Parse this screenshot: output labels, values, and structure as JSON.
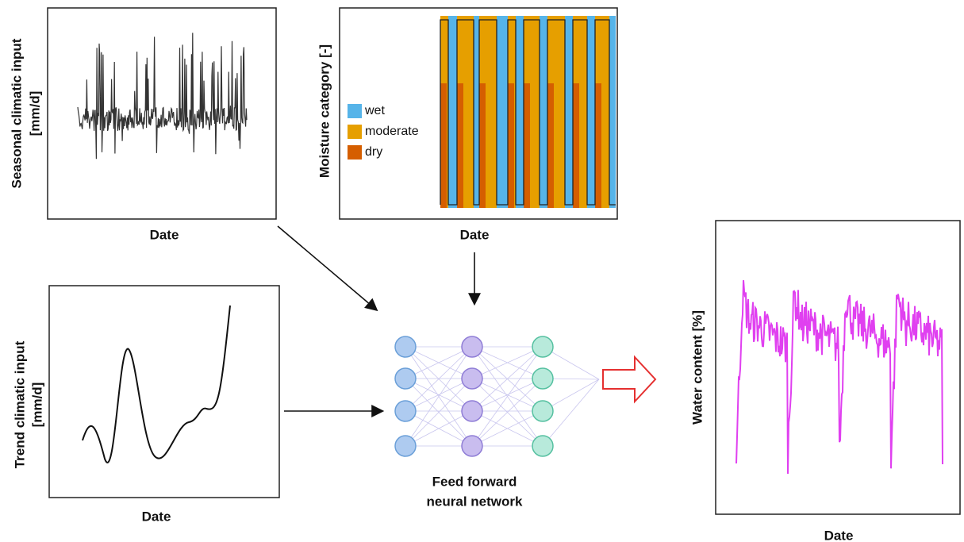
{
  "panels": [
    {
      "y_label": [
        "Seasonal climatic input",
        "[mm/d]"
      ],
      "x_label": "Date"
    },
    {
      "y_label": [
        "Moisture category [-]"
      ],
      "x_label": "Date",
      "legend": [
        {
          "label": "wet",
          "color": "#56b4e9"
        },
        {
          "label": "moderate",
          "color": "#e69f00"
        },
        {
          "label": "dry",
          "color": "#d55e00"
        }
      ]
    },
    {
      "y_label": [
        "Trend climatic input",
        "[mm/d]"
      ],
      "x_label": "Date"
    },
    {
      "y_label": [
        "Water content [%]"
      ],
      "x_label": "Date"
    }
  ],
  "network": {
    "label": [
      "Feed forward",
      "neural network"
    ]
  }
}
